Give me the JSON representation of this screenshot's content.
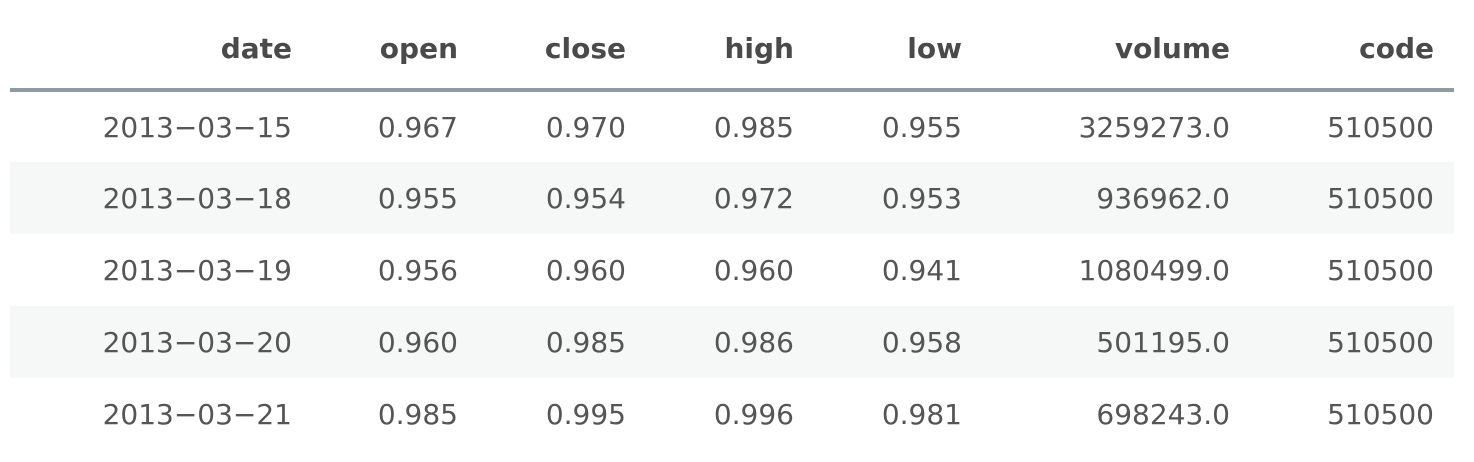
{
  "table": {
    "columns": [
      "date",
      "open",
      "close",
      "high",
      "low",
      "volume",
      "code"
    ],
    "rows": [
      [
        "2013−03−15",
        "0.967",
        "0.970",
        "0.985",
        "0.955",
        "3259273.0",
        "510500"
      ],
      [
        "2013−03−18",
        "0.955",
        "0.954",
        "0.972",
        "0.953",
        "936962.0",
        "510500"
      ],
      [
        "2013−03−19",
        "0.956",
        "0.960",
        "0.960",
        "0.941",
        "1080499.0",
        "510500"
      ],
      [
        "2013−03−20",
        "0.960",
        "0.985",
        "0.986",
        "0.958",
        "501195.0",
        "510500"
      ],
      [
        "2013−03−21",
        "0.985",
        "0.995",
        "0.996",
        "0.981",
        "698243.0",
        "510500"
      ]
    ]
  }
}
